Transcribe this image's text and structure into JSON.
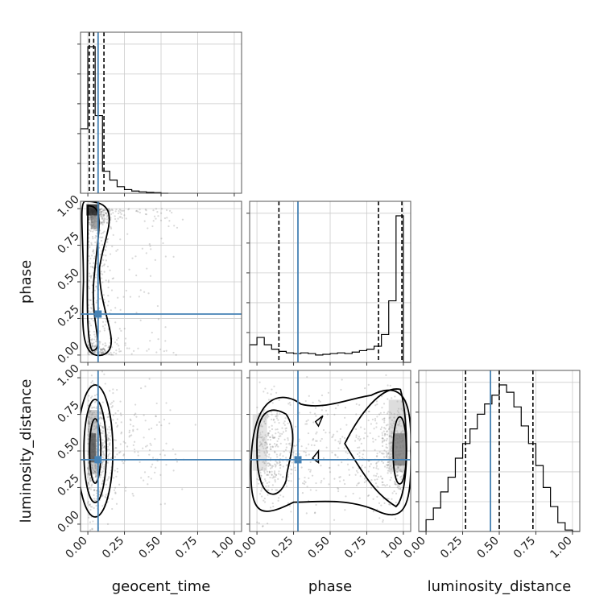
{
  "chart_data": {
    "type": "corner",
    "parameters": [
      "geocent_time",
      "phase",
      "luminosity_distance"
    ],
    "truths": {
      "geocent_time": 0.07,
      "phase": 0.28,
      "luminosity_distance": 0.44
    },
    "quantiles": {
      "geocent_time": [
        0.01,
        0.04,
        0.11
      ],
      "phase": [
        0.15,
        0.83,
        0.99
      ],
      "luminosity_distance": [
        0.27,
        0.5,
        0.73
      ]
    },
    "ticks": {
      "x": [
        "0.00",
        "0.25",
        "0.50",
        "0.75",
        "1.00"
      ],
      "y": [
        "0.00",
        "0.25",
        "0.50",
        "0.75",
        "1.00"
      ]
    },
    "histograms": {
      "geocent_time": {
        "range": [
          -0.05,
          1.05
        ],
        "bin_edges": [
          -0.05,
          0.0,
          0.05,
          0.1,
          0.15,
          0.2,
          0.25,
          0.3,
          0.35,
          0.4,
          0.45,
          0.5,
          0.55
        ],
        "counts": [
          0.44,
          1.0,
          0.53,
          0.15,
          0.09,
          0.045,
          0.025,
          0.015,
          0.01,
          0.006,
          0.004,
          0.0
        ]
      },
      "phase": {
        "range": [
          -0.05,
          1.05
        ],
        "bin_edges": [
          -0.05,
          0.0,
          0.05,
          0.1,
          0.15,
          0.2,
          0.25,
          0.3,
          0.35,
          0.4,
          0.45,
          0.5,
          0.55,
          0.6,
          0.65,
          0.7,
          0.75,
          0.8,
          0.85,
          0.9,
          0.95,
          1.0,
          1.05
        ],
        "counts": [
          0.12,
          0.17,
          0.12,
          0.09,
          0.075,
          0.065,
          0.06,
          0.065,
          0.06,
          0.05,
          0.055,
          0.06,
          0.065,
          0.06,
          0.07,
          0.08,
          0.09,
          0.11,
          0.19,
          0.42,
          1.0,
          0.0
        ]
      },
      "luminosity_distance": {
        "range": [
          -0.05,
          1.05
        ],
        "bin_edges": [
          -0.05,
          0.0,
          0.05,
          0.1,
          0.15,
          0.2,
          0.25,
          0.3,
          0.35,
          0.4,
          0.45,
          0.5,
          0.55,
          0.6,
          0.65,
          0.7,
          0.75,
          0.8,
          0.85,
          0.9,
          0.95,
          1.0,
          1.05
        ],
        "counts": [
          0.0,
          0.08,
          0.16,
          0.27,
          0.37,
          0.5,
          0.6,
          0.7,
          0.8,
          0.87,
          0.93,
          1.0,
          0.95,
          0.85,
          0.72,
          0.6,
          0.45,
          0.3,
          0.17,
          0.06,
          0.01,
          0.0
        ]
      }
    },
    "pairs": [
      {
        "x": "geocent_time",
        "y": "phase",
        "scatter_center": [
          0.08,
          0.5
        ],
        "scatter_spread": [
          0.12,
          0.45
        ],
        "n_points": 700
      },
      {
        "x": "geocent_time",
        "y": "luminosity_distance",
        "scatter_center": [
          0.08,
          0.5
        ],
        "scatter_spread": [
          0.12,
          0.38
        ],
        "n_points": 700
      },
      {
        "x": "phase",
        "y": "luminosity_distance",
        "scatter_center": [
          0.5,
          0.5
        ],
        "scatter_spread": [
          0.5,
          0.38
        ],
        "n_points": 900
      }
    ],
    "truth_color": "#4682b4",
    "grid": true
  }
}
